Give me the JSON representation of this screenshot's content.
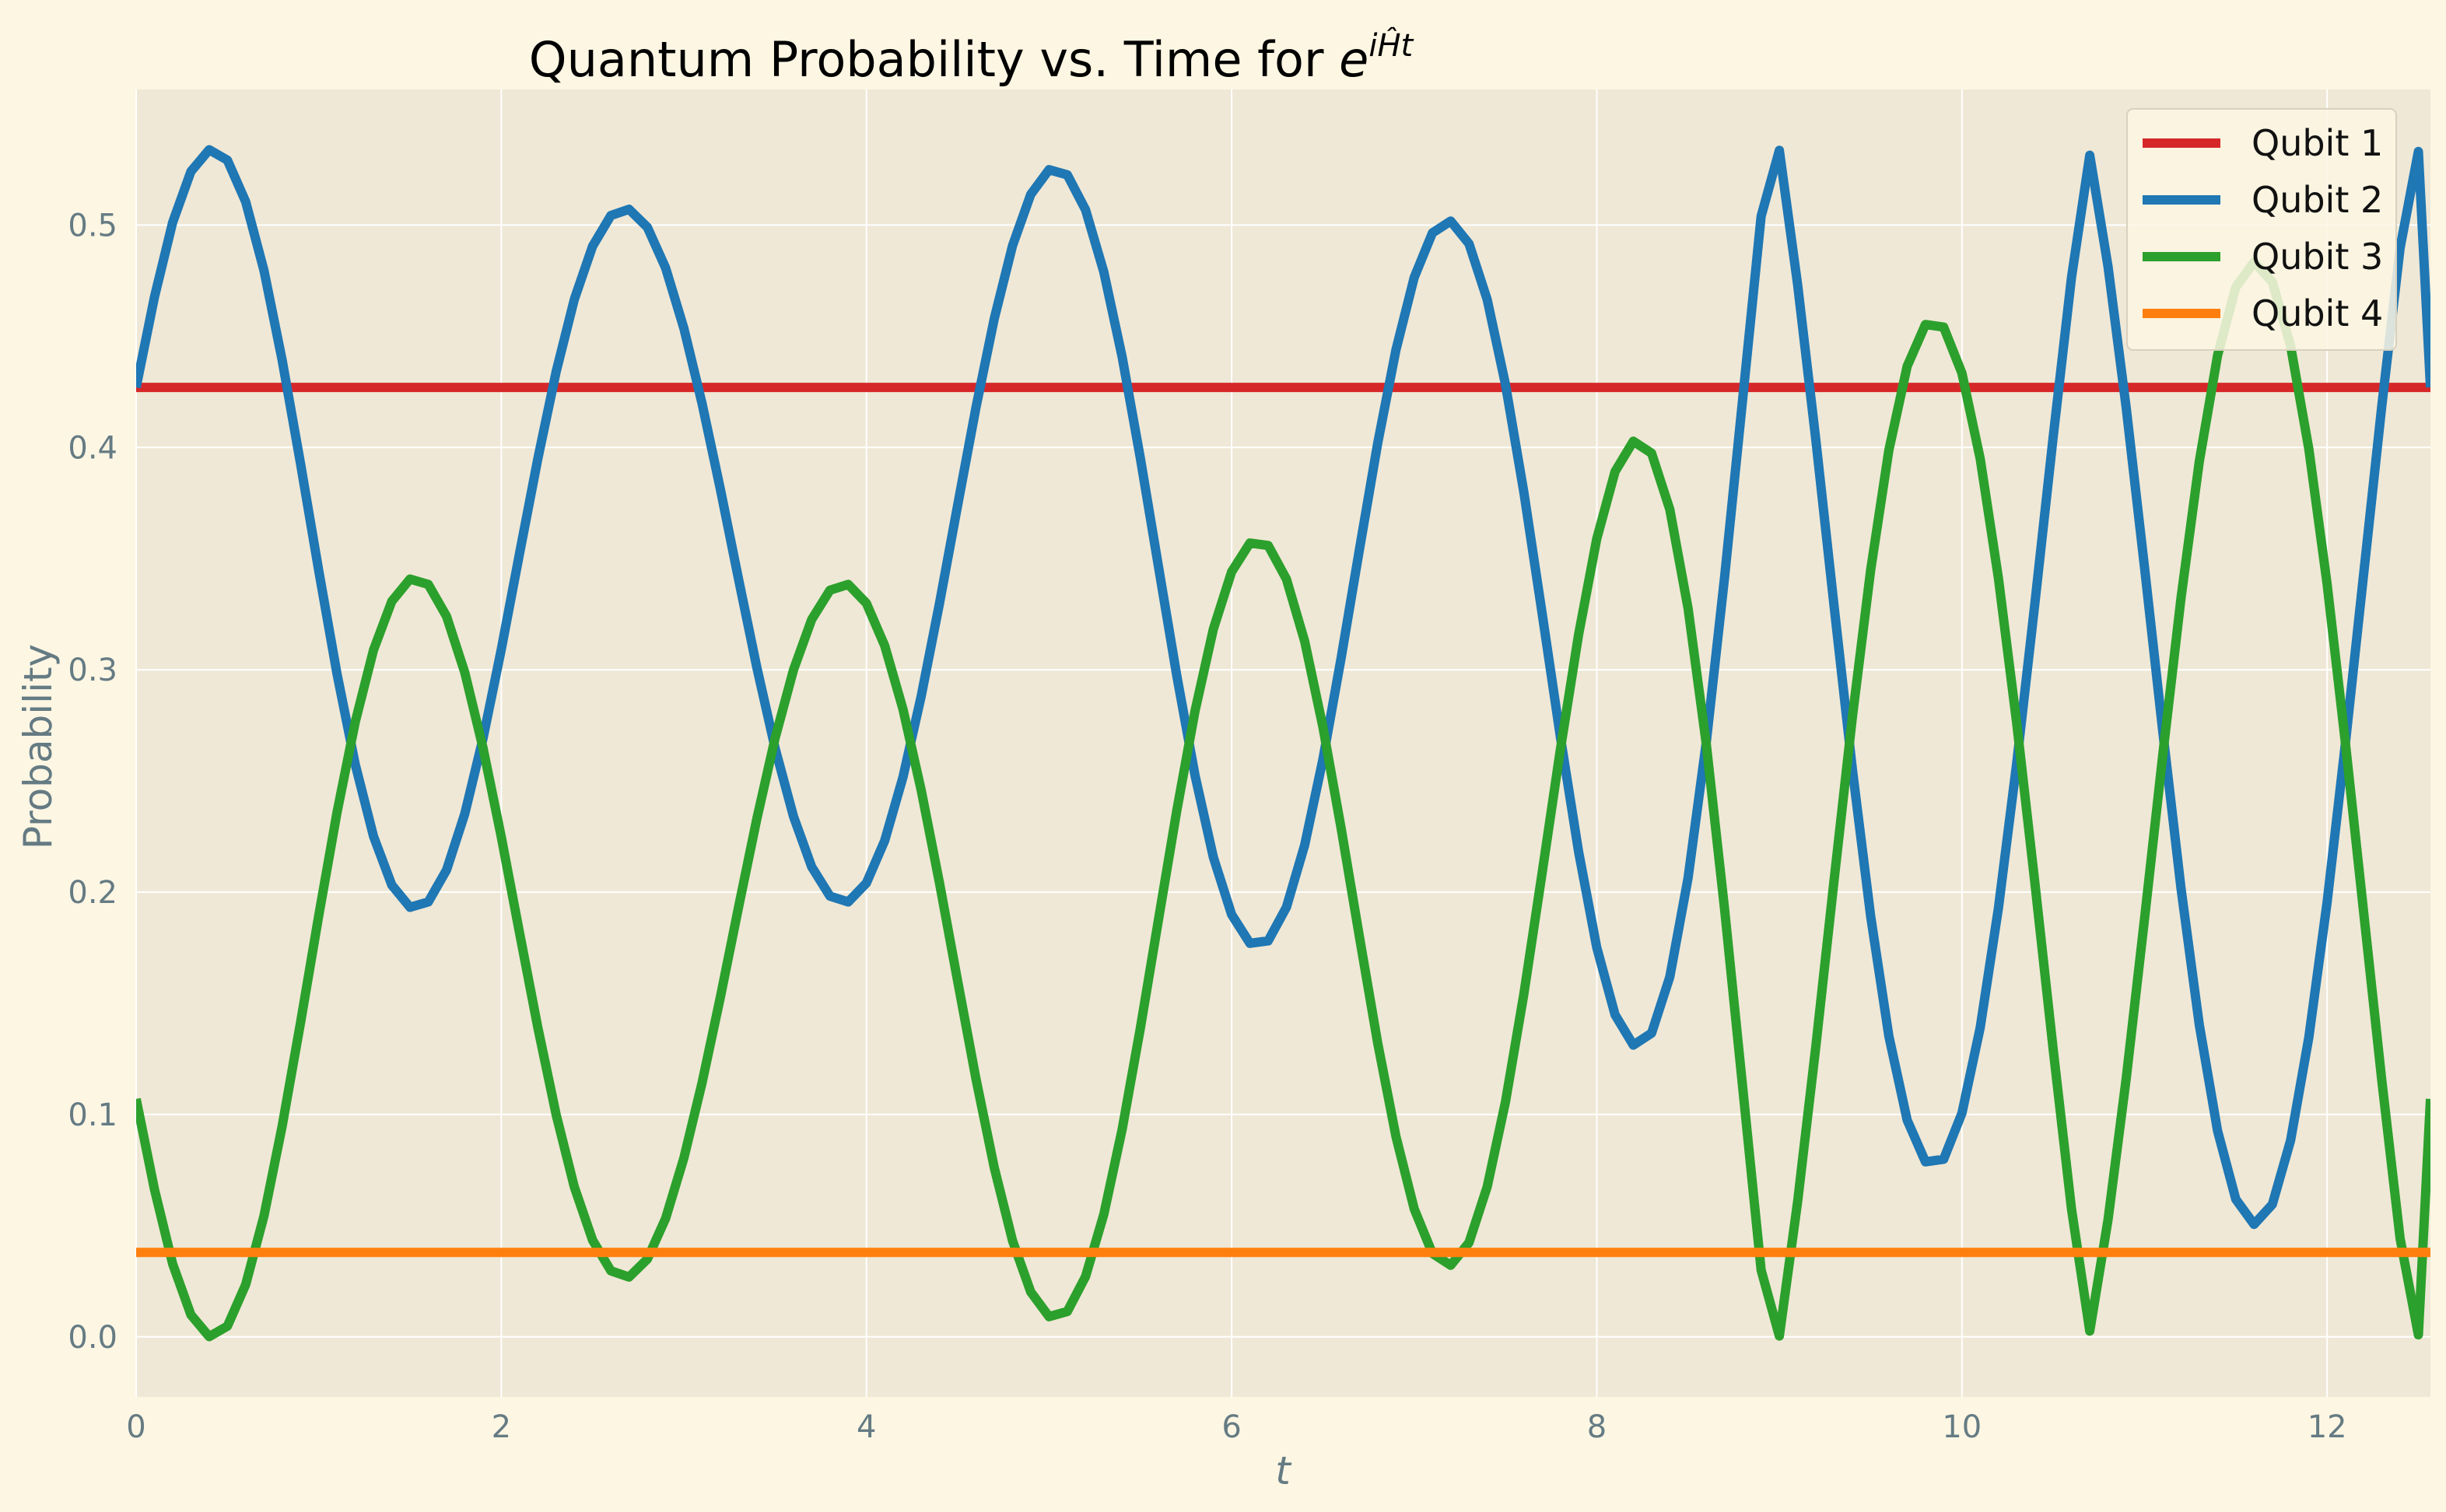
{
  "chart_data": {
    "type": "line",
    "title": {
      "prefix": "Quantum Probability vs. Time for ",
      "base": "e",
      "exponent_i": "i",
      "exponent_H": "Ĥ",
      "exponent_t": "t"
    },
    "xlabel": "t",
    "ylabel": "Probability",
    "xlim": [
      0,
      12.566
    ],
    "ylim": [
      -0.027,
      0.561
    ],
    "xticks": [
      0,
      2,
      4,
      6,
      8,
      10,
      12
    ],
    "yticks": [
      0.0,
      0.1,
      0.2,
      0.3,
      0.4,
      0.5
    ],
    "xtick_labels": [
      "0",
      "2",
      "4",
      "6",
      "8",
      "10",
      "12"
    ],
    "ytick_labels": [
      "0.0",
      "0.1",
      "0.2",
      "0.3",
      "0.4",
      "0.5"
    ],
    "grid": true,
    "legend_position": "top-right",
    "series": [
      {
        "name": "Qubit 1",
        "color": "#d62728",
        "x": [
          0,
          12.566
        ],
        "y": [
          0.427,
          0.427
        ]
      },
      {
        "name": "Qubit 2",
        "color": "#1f77b4",
        "x": [
          0.0,
          0.1,
          0.2,
          0.3,
          0.4,
          0.5,
          0.6,
          0.7,
          0.8,
          0.9,
          1.0,
          1.1,
          1.2,
          1.3,
          1.4,
          1.5,
          1.6,
          1.7,
          1.8,
          1.9,
          2.0,
          2.1,
          2.2,
          2.3,
          2.4,
          2.5,
          2.6,
          2.7,
          2.8,
          2.9,
          3.0,
          3.1,
          3.2,
          3.3,
          3.4,
          3.5,
          3.6,
          3.7,
          3.8,
          3.9,
          4.0,
          4.1,
          4.2,
          4.3,
          4.4,
          4.5,
          4.6,
          4.7,
          4.8,
          4.9,
          5.0,
          5.1,
          5.2,
          5.3,
          5.4,
          5.5,
          5.6,
          5.7,
          5.8,
          5.9,
          6.0,
          6.1,
          6.2,
          6.3,
          6.4,
          6.5,
          6.6,
          6.7,
          6.8,
          6.9,
          7.0,
          7.1,
          7.2,
          7.3,
          7.4,
          7.5,
          7.6,
          7.7,
          7.8,
          7.9,
          8.0,
          8.1,
          8.2,
          8.3,
          8.4,
          8.5,
          8.6,
          8.7,
          8.8,
          8.9,
          9.0,
          9.1,
          9.2,
          9.3,
          9.4,
          9.5,
          9.6,
          9.7,
          9.8,
          9.9,
          10.0,
          10.1,
          10.2,
          10.3,
          10.4,
          10.5,
          10.6,
          10.7,
          10.8,
          10.9,
          11.0,
          11.1,
          11.2,
          11.3,
          11.4,
          11.5,
          11.6,
          11.7,
          11.8,
          11.9,
          12.0,
          12.1,
          12.2,
          12.3,
          12.4,
          12.5,
          12.566
        ],
        "y": [
          0.427,
          0.4676,
          0.5012,
          0.5241,
          0.5339,
          0.5292,
          0.5105,
          0.4796,
          0.4392,
          0.3929,
          0.3446,
          0.2983,
          0.2575,
          0.2251,
          0.2032,
          0.1932,
          0.1956,
          0.21,
          0.2352,
          0.2692,
          0.3093,
          0.3523,
          0.3949,
          0.434,
          0.4666,
          0.4905,
          0.5043,
          0.5071,
          0.499,
          0.4807,
          0.4536,
          0.4196,
          0.3811,
          0.3406,
          0.3009,
          0.2646,
          0.2341,
          0.2114,
          0.1982,
          0.1956,
          0.2041,
          0.2232,
          0.2518,
          0.2882,
          0.3299,
          0.3743,
          0.418,
          0.4579,
          0.4908,
          0.5138,
          0.5249,
          0.5226,
          0.5069,
          0.4789,
          0.4408,
          0.3953,
          0.3461,
          0.2971,
          0.2524,
          0.2157,
          0.1899,
          0.177,
          0.1781,
          0.1932,
          0.2212,
          0.2597,
          0.3054,
          0.3542,
          0.4018,
          0.4439,
          0.4765,
          0.4965,
          0.5018,
          0.4916,
          0.4665,
          0.4283,
          0.3801,
          0.3258,
          0.2702,
          0.2183,
          0.1751,
          0.1449,
          0.1312,
          0.1366,
          0.1619,
          0.2064,
          0.2677,
          0.3416,
          0.4226,
          0.504,
          0.5336,
          0.4732,
          0.4031,
          0.3285,
          0.2552,
          0.1891,
          0.1352,
          0.0975,
          0.0787,
          0.0799,
          0.1006,
          0.1391,
          0.1928,
          0.258,
          0.3303,
          0.4048,
          0.4764,
          0.5314,
          0.4813,
          0.4177,
          0.346,
          0.2721,
          0.2017,
          0.1403,
          0.0926,
          0.0619,
          0.0506,
          0.0596,
          0.0883,
          0.1347,
          0.1955,
          0.2666,
          0.3429,
          0.4191,
          0.4897,
          0.5331,
          0.427
        ]
      },
      {
        "name": "Qubit 3",
        "color": "#2ca02c",
        "x": [
          0.0,
          0.1,
          0.2,
          0.3,
          0.4,
          0.5,
          0.6,
          0.7,
          0.8,
          0.9,
          1.0,
          1.1,
          1.2,
          1.3,
          1.4,
          1.5,
          1.6,
          1.7,
          1.8,
          1.9,
          2.0,
          2.1,
          2.2,
          2.3,
          2.4,
          2.5,
          2.6,
          2.7,
          2.8,
          2.9,
          3.0,
          3.1,
          3.2,
          3.3,
          3.4,
          3.5,
          3.6,
          3.7,
          3.8,
          3.9,
          4.0,
          4.1,
          4.2,
          4.3,
          4.4,
          4.5,
          4.6,
          4.7,
          4.8,
          4.9,
          5.0,
          5.1,
          5.2,
          5.3,
          5.4,
          5.5,
          5.6,
          5.7,
          5.8,
          5.9,
          6.0,
          6.1,
          6.2,
          6.3,
          6.4,
          6.5,
          6.6,
          6.7,
          6.8,
          6.9,
          7.0,
          7.1,
          7.2,
          7.3,
          7.4,
          7.5,
          7.6,
          7.7,
          7.8,
          7.9,
          8.0,
          8.1,
          8.2,
          8.3,
          8.4,
          8.5,
          8.6,
          8.7,
          8.8,
          8.9,
          9.0,
          9.1,
          9.2,
          9.3,
          9.4,
          9.5,
          9.6,
          9.7,
          9.8,
          9.9,
          10.0,
          10.1,
          10.2,
          10.3,
          10.4,
          10.5,
          10.6,
          10.7,
          10.8,
          10.9,
          11.0,
          11.1,
          11.2,
          11.3,
          11.4,
          11.5,
          11.6,
          11.7,
          11.8,
          11.9,
          12.0,
          12.1,
          12.2,
          12.3,
          12.4,
          12.5,
          12.566
        ],
        "y": [
          0.107,
          0.0664,
          0.0328,
          0.0099,
          0.0001,
          0.0048,
          0.0235,
          0.0544,
          0.0948,
          0.1411,
          0.1894,
          0.2357,
          0.2765,
          0.3089,
          0.3308,
          0.3408,
          0.3384,
          0.324,
          0.2988,
          0.2648,
          0.2247,
          0.1817,
          0.1391,
          0.1,
          0.0674,
          0.0435,
          0.0297,
          0.0269,
          0.035,
          0.0533,
          0.0804,
          0.1144,
          0.1529,
          0.1934,
          0.2331,
          0.2694,
          0.2999,
          0.3226,
          0.3358,
          0.3384,
          0.3299,
          0.3108,
          0.2822,
          0.2458,
          0.2041,
          0.1597,
          0.116,
          0.0761,
          0.0432,
          0.0202,
          0.0091,
          0.0114,
          0.0271,
          0.0551,
          0.0932,
          0.1387,
          0.1879,
          0.2369,
          0.2816,
          0.3183,
          0.3441,
          0.357,
          0.3559,
          0.3408,
          0.3128,
          0.2743,
          0.2286,
          0.1798,
          0.1322,
          0.0901,
          0.0575,
          0.0375,
          0.0322,
          0.0424,
          0.0675,
          0.1057,
          0.1539,
          0.2082,
          0.2638,
          0.3157,
          0.3589,
          0.3891,
          0.4028,
          0.3974,
          0.3721,
          0.3276,
          0.2663,
          0.1924,
          0.1114,
          0.03,
          0.0004,
          0.0608,
          0.1309,
          0.2055,
          0.2788,
          0.3449,
          0.3988,
          0.4365,
          0.4553,
          0.4541,
          0.4334,
          0.3949,
          0.3412,
          0.276,
          0.2037,
          0.1292,
          0.0576,
          0.0026,
          0.0527,
          0.1163,
          0.188,
          0.2619,
          0.3323,
          0.3937,
          0.4414,
          0.4721,
          0.4834,
          0.4744,
          0.4457,
          0.3993,
          0.3385,
          0.2674,
          0.1911,
          0.1149,
          0.0443,
          0.0009,
          0.107
        ]
      },
      {
        "name": "Qubit 4",
        "color": "#ff7f0e",
        "x": [
          0,
          12.566
        ],
        "y": [
          0.038,
          0.038
        ]
      }
    ]
  }
}
